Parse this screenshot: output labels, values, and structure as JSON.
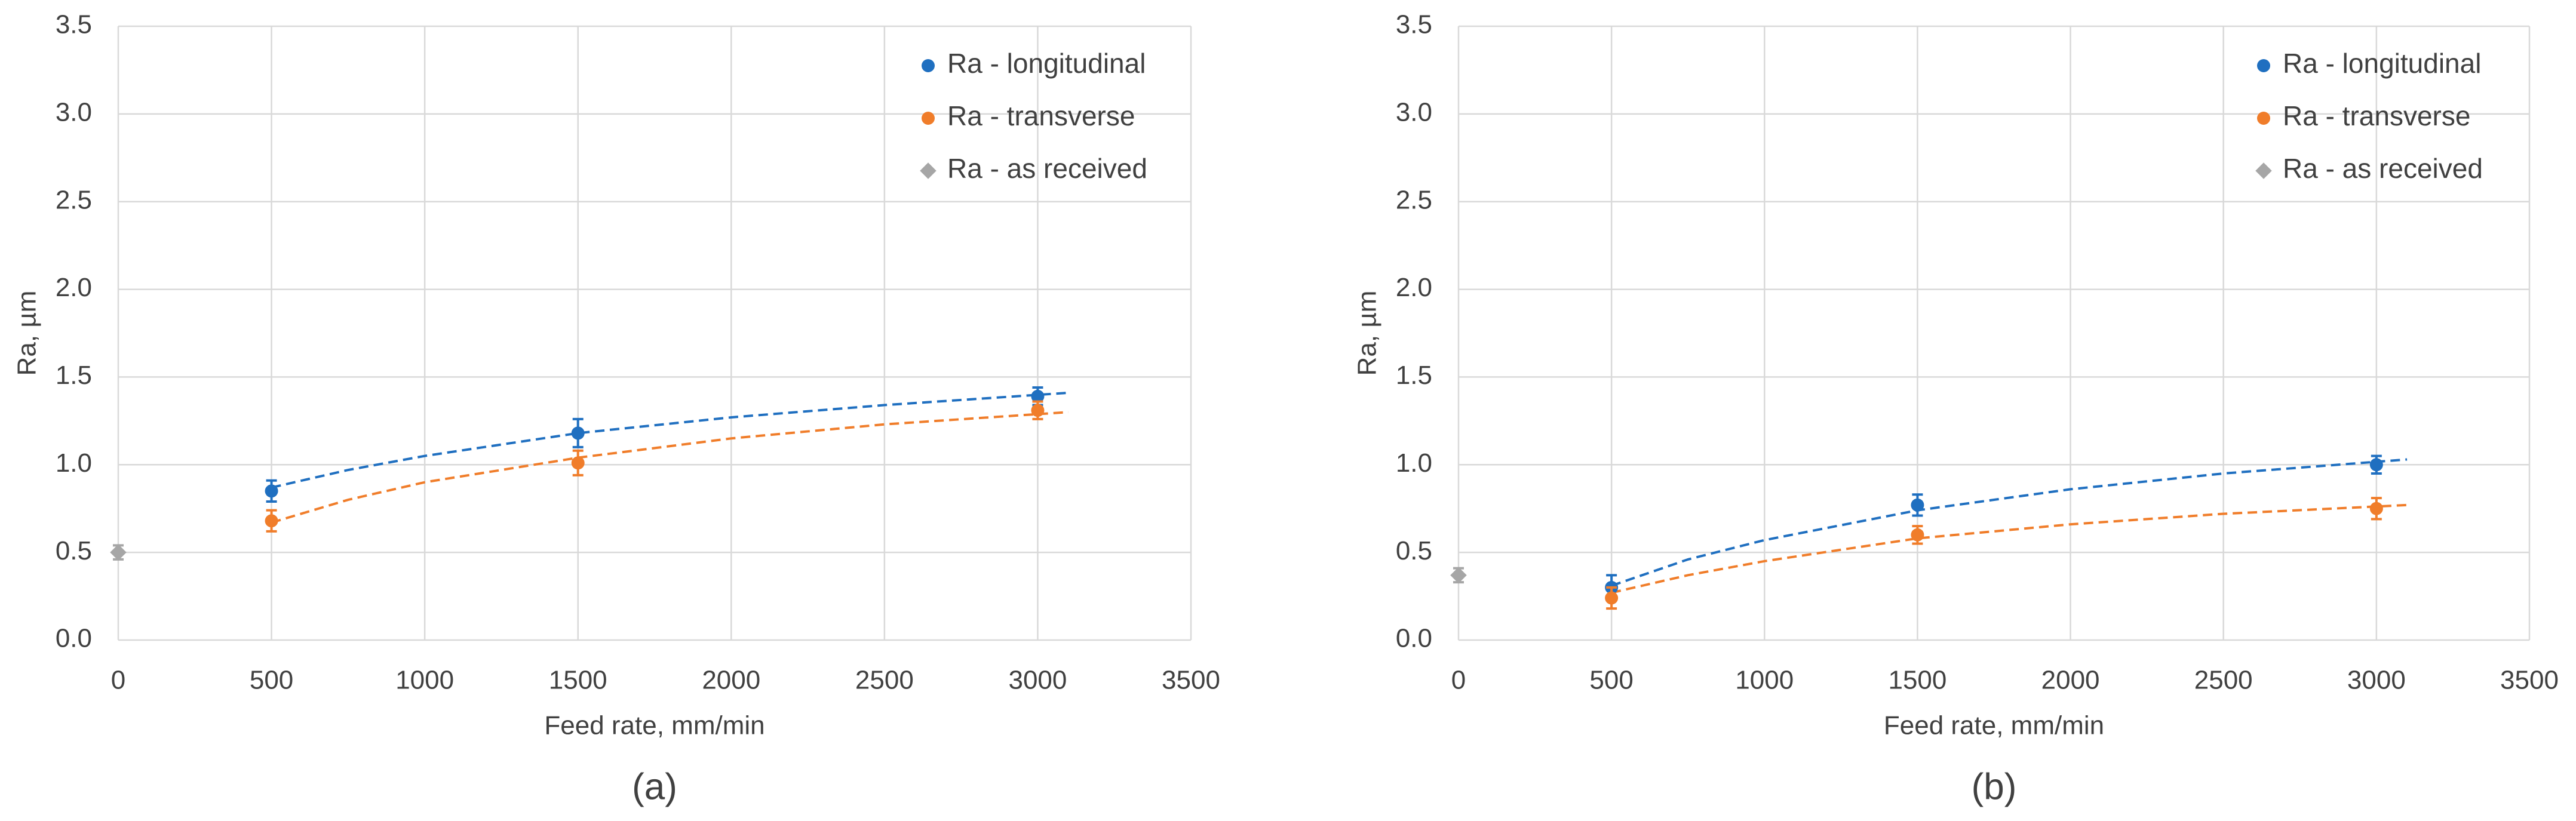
{
  "chart_data": [
    {
      "type": "scatter",
      "caption": "(a)",
      "xlabel": "Feed rate,  mm/min",
      "ylabel": "Ra,  µm",
      "xlim": [
        0,
        3500
      ],
      "xticks": [
        0,
        500,
        1000,
        1500,
        2000,
        2500,
        3000,
        3500
      ],
      "ylim": [
        0,
        3.5
      ],
      "yticks": [
        {
          "value": 0,
          "label": "0.0"
        },
        0.5,
        {
          "value": 1,
          "label": "1.0"
        },
        1.5,
        {
          "value": 2,
          "label": "2.0"
        },
        2.5,
        {
          "value": 3,
          "label": "3.0"
        },
        3.5
      ],
      "grid": true,
      "legend": "upper right",
      "series": [
        {
          "name": "Ra - longitudinal",
          "color": "#1f6fc0",
          "marker": "circle",
          "x": [
            500,
            1500,
            3000
          ],
          "values": [
            0.85,
            1.18,
            1.39
          ],
          "errors": [
            0.06,
            0.08,
            0.05
          ]
        },
        {
          "name": "Ra - transverse",
          "color": "#f07d2a",
          "marker": "circle",
          "x": [
            500,
            1500,
            3000
          ],
          "values": [
            0.68,
            1.01,
            1.31
          ],
          "errors": [
            0.06,
            0.07,
            0.05
          ]
        },
        {
          "name": "Ra - as received",
          "color": "#a6a6a6",
          "marker": "diamond",
          "x": [
            0
          ],
          "values": [
            0.5
          ],
          "errors": [
            0.04
          ]
        }
      ],
      "trendlines": [
        {
          "color": "#1f6fc0",
          "x": [
            500,
            750,
            1000,
            1500,
            2000,
            2500,
            3100
          ],
          "values": [
            0.87,
            0.97,
            1.05,
            1.18,
            1.27,
            1.34,
            1.41
          ]
        },
        {
          "color": "#f07d2a",
          "x": [
            500,
            750,
            1000,
            1500,
            2000,
            2500,
            3100
          ],
          "values": [
            0.67,
            0.8,
            0.9,
            1.04,
            1.15,
            1.23,
            1.3
          ]
        }
      ]
    },
    {
      "type": "scatter",
      "caption": "(b)",
      "xlabel": "Feed rate,  mm/min",
      "ylabel": "Ra,  µm",
      "xlim": [
        0,
        3500
      ],
      "xticks": [
        0,
        500,
        1000,
        1500,
        2000,
        2500,
        3000,
        3500
      ],
      "ylim": [
        0,
        3.5
      ],
      "yticks": [
        {
          "value": 0,
          "label": "0.0"
        },
        0.5,
        {
          "value": 1,
          "label": "1.0"
        },
        1.5,
        {
          "value": 2,
          "label": "2.0"
        },
        2.5,
        {
          "value": 3,
          "label": "3.0"
        },
        3.5
      ],
      "grid": true,
      "legend": "upper right",
      "series": [
        {
          "name": "Ra - longitudinal",
          "color": "#1f6fc0",
          "marker": "circle",
          "x": [
            500,
            1500,
            3000
          ],
          "values": [
            0.3,
            0.77,
            1.0
          ],
          "errors": [
            0.07,
            0.06,
            0.05
          ]
        },
        {
          "name": "Ra - transverse",
          "color": "#f07d2a",
          "marker": "circle",
          "x": [
            500,
            1500,
            3000
          ],
          "values": [
            0.24,
            0.6,
            0.75
          ],
          "errors": [
            0.06,
            0.05,
            0.06
          ]
        },
        {
          "name": "Ra - as received",
          "color": "#a6a6a6",
          "marker": "diamond",
          "x": [
            0
          ],
          "values": [
            0.37
          ],
          "errors": [
            0.04
          ]
        }
      ],
      "trendlines": [
        {
          "color": "#1f6fc0",
          "x": [
            500,
            750,
            1000,
            1500,
            2000,
            2500,
            3100
          ],
          "values": [
            0.31,
            0.46,
            0.57,
            0.74,
            0.86,
            0.95,
            1.03
          ]
        },
        {
          "color": "#f07d2a",
          "x": [
            500,
            750,
            1000,
            1500,
            2000,
            2500,
            3100
          ],
          "values": [
            0.27,
            0.37,
            0.45,
            0.58,
            0.66,
            0.72,
            0.77
          ]
        }
      ]
    }
  ]
}
